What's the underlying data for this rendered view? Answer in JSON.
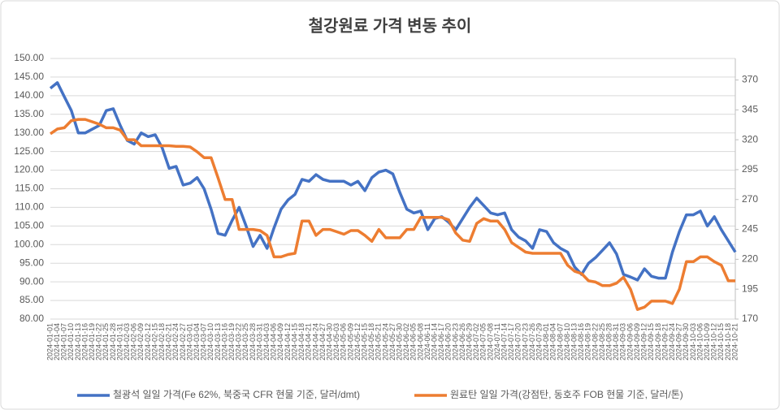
{
  "chart_data": {
    "type": "line",
    "title": "철강원료 가격 변동 추이",
    "categories": [
      "2024-01-01",
      "2024-01-04",
      "2024-01-07",
      "2024-01-10",
      "2024-01-13",
      "2024-01-16",
      "2024-01-19",
      "2024-01-22",
      "2024-01-25",
      "2024-01-28",
      "2024-01-31",
      "2024-02-03",
      "2024-02-06",
      "2024-02-09",
      "2024-02-12",
      "2024-02-15",
      "2024-02-18",
      "2024-02-21",
      "2024-02-24",
      "2024-02-27",
      "2024-03-01",
      "2024-03-04",
      "2024-03-07",
      "2024-03-10",
      "2024-03-13",
      "2024-03-16",
      "2024-03-19",
      "2024-03-22",
      "2024-03-25",
      "2024-03-28",
      "2024-03-31",
      "2024-04-03",
      "2024-04-06",
      "2024-04-09",
      "2024-04-12",
      "2024-04-15",
      "2024-04-18",
      "2024-04-21",
      "2024-04-24",
      "2024-04-27",
      "2024-04-30",
      "2024-05-03",
      "2024-05-06",
      "2024-05-09",
      "2024-05-12",
      "2024-05-15",
      "2024-05-18",
      "2024-05-21",
      "2024-05-24",
      "2024-05-27",
      "2024-05-30",
      "2024-06-02",
      "2024-06-05",
      "2024-06-08",
      "2024-06-11",
      "2024-06-14",
      "2024-06-17",
      "2024-06-20",
      "2024-06-23",
      "2024-06-26",
      "2024-06-29",
      "2024-07-02",
      "2024-07-05",
      "2024-07-08",
      "2024-07-11",
      "2024-07-14",
      "2024-07-17",
      "2024-07-20",
      "2024-07-23",
      "2024-07-26",
      "2024-07-29",
      "2024-08-01",
      "2024-08-04",
      "2024-08-07",
      "2024-08-10",
      "2024-08-13",
      "2024-08-16",
      "2024-08-19",
      "2024-08-22",
      "2024-08-25",
      "2024-08-28",
      "2024-08-31",
      "2024-09-03",
      "2024-09-06",
      "2024-09-09",
      "2024-09-12",
      "2024-09-15",
      "2024-09-18",
      "2024-09-21",
      "2024-09-24",
      "2024-09-27",
      "2024-09-30",
      "2024-10-03",
      "2024-10-06",
      "2024-10-09",
      "2024-10-12",
      "2024-10-15",
      "2024-10-18",
      "2024-10-21"
    ],
    "series": [
      {
        "name": "철광석 일일 가격(Fe 62%, 북중국 CFR 현물 기준, 달러/dmt)",
        "color": "#4472c4",
        "axis": "y",
        "values": [
          142,
          143.5,
          139.7,
          136,
          130,
          130,
          131,
          132,
          136,
          136.5,
          132,
          128,
          127,
          130,
          129,
          129.5,
          126,
          120.5,
          121,
          116,
          116.5,
          118,
          115,
          109.5,
          103,
          102.5,
          106.5,
          110,
          105,
          99.5,
          102.5,
          99,
          104.5,
          109.5,
          112,
          113.5,
          117.5,
          117,
          118.8,
          117.5,
          117,
          117,
          117,
          116,
          117,
          114.5,
          118,
          119.5,
          120,
          119,
          114,
          109.5,
          108.5,
          109,
          104,
          107,
          107.5,
          106,
          104,
          107,
          110,
          112.5,
          110.5,
          108.5,
          108,
          108.5,
          104,
          102,
          101,
          99,
          104,
          103.5,
          100.5,
          99,
          98,
          94,
          92,
          95,
          96.5,
          98.5,
          100.5,
          97.5,
          92,
          91.3,
          90.5,
          93.5,
          91.5,
          91,
          91,
          98,
          103.5,
          108,
          108,
          109,
          105,
          107.5,
          104,
          101,
          98
        ]
      },
      {
        "name": "원료탄 일일 가격(강점탄, 동호주 FOB 현물 기준, 달러/톤)",
        "color": "#ed7d31",
        "axis": "y2",
        "values": [
          325,
          329,
          330,
          336,
          337,
          337,
          335,
          333,
          330,
          330,
          328,
          320,
          320,
          315,
          315,
          315,
          315,
          315,
          314.5,
          314.5,
          314,
          310,
          305,
          305,
          288,
          270,
          270,
          245,
          245,
          245,
          244,
          240,
          222,
          222,
          224,
          225,
          252,
          252,
          240,
          245,
          245,
          243,
          241,
          244,
          244,
          240,
          235,
          245,
          238,
          238,
          238,
          245,
          245,
          255,
          255,
          255,
          255,
          253,
          242,
          236,
          235,
          250,
          254,
          252,
          252,
          245,
          234,
          230,
          226,
          225,
          225,
          225,
          225,
          225,
          215,
          210,
          208,
          202,
          201,
          198,
          198,
          200,
          205,
          195,
          178,
          180,
          185,
          185,
          185,
          183,
          195,
          218,
          218,
          222,
          222,
          218,
          215,
          202,
          202
        ]
      }
    ],
    "ylim": [
      80,
      150
    ],
    "yticks": [
      {
        "value": 80,
        "label": "80.00"
      },
      {
        "value": 85,
        "label": "85.00"
      },
      {
        "value": 90,
        "label": "90.00"
      },
      {
        "value": 95,
        "label": "95.00"
      },
      {
        "value": 100,
        "label": "100.00"
      },
      {
        "value": 105,
        "label": "105.00"
      },
      {
        "value": 110,
        "label": "110.00"
      },
      {
        "value": 115,
        "label": "115.00"
      },
      {
        "value": 120,
        "label": "120.00"
      },
      {
        "value": 125,
        "label": "125.00"
      },
      {
        "value": 130,
        "label": "130.00"
      },
      {
        "value": 135,
        "label": "135.00"
      },
      {
        "value": 140,
        "label": "140.00"
      },
      {
        "value": 145,
        "label": "145.00"
      },
      {
        "value": 150,
        "label": "150.00"
      }
    ],
    "y2lim": [
      170,
      388
    ],
    "y2ticks": [
      170,
      195,
      220,
      245,
      270,
      295,
      320,
      345,
      370
    ],
    "grid": true,
    "legend": "bottom"
  }
}
